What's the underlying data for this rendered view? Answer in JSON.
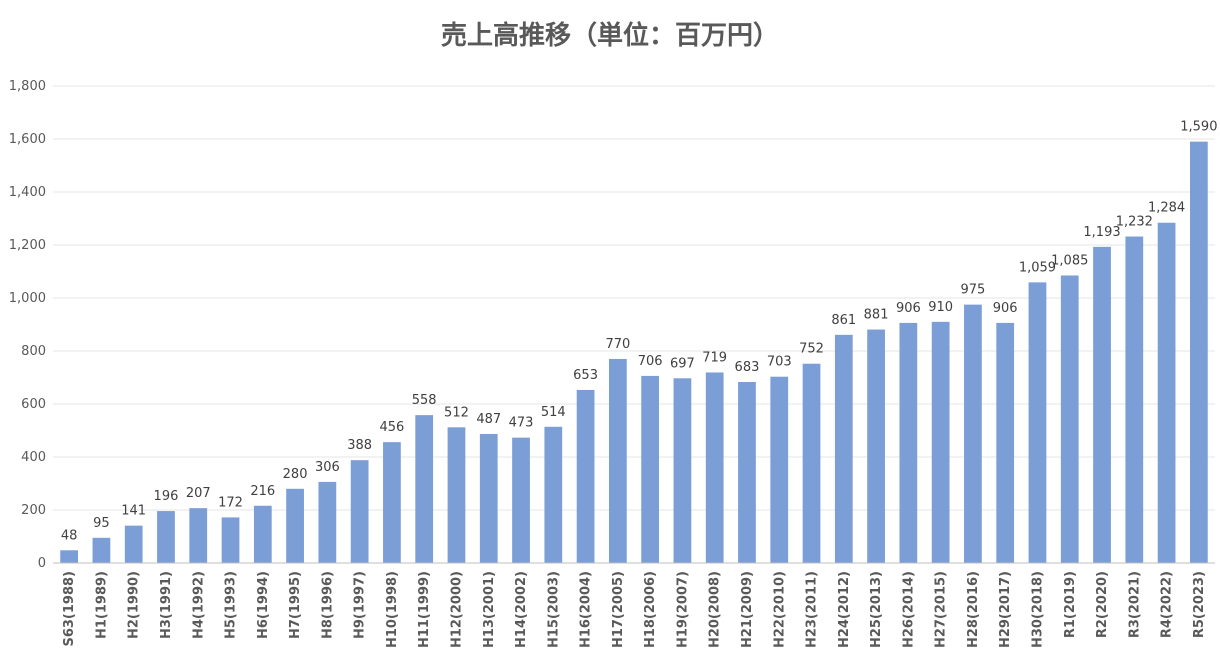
{
  "chart_data": {
    "type": "bar",
    "title": "売上高推移（単位：百万円）",
    "xlabel": "",
    "ylabel": "",
    "ylim": [
      0,
      1800
    ],
    "y_ticks": [
      "0",
      "200",
      "400",
      "600",
      "800",
      "1,000",
      "1,200",
      "1,400",
      "1,600",
      "1,800"
    ],
    "grid": true,
    "legend": "none",
    "bar_color": "#7b9ed6",
    "categories": [
      "S63(1988)",
      "H1(1989)",
      "H2(1990)",
      "H3(1991)",
      "H4(1992)",
      "H5(1993)",
      "H6(1994)",
      "H7(1995)",
      "H8(1996)",
      "H9(1997)",
      "H10(1998)",
      "H11(1999)",
      "H12(2000)",
      "H13(2001)",
      "H14(2002)",
      "H15(2003)",
      "H16(2004)",
      "H17(2005)",
      "H18(2006)",
      "H19(2007)",
      "H20(2008)",
      "H21(2009)",
      "H22(2010)",
      "H23(2011)",
      "H24(2012)",
      "H25(2013)",
      "H26(2014)",
      "H27(2015)",
      "H28(2016)",
      "H29(2017)",
      "H30(2018)",
      "R1(2019)",
      "R2(2020)",
      "R3(2021)",
      "R4(2022)",
      "R5(2023)"
    ],
    "values": [
      48,
      95,
      141,
      196,
      207,
      172,
      216,
      280,
      306,
      388,
      456,
      558,
      512,
      487,
      473,
      514,
      653,
      770,
      706,
      697,
      719,
      683,
      703,
      752,
      861,
      881,
      906,
      910,
      975,
      906,
      1059,
      1085,
      1193,
      1232,
      1284,
      1590
    ],
    "data_labels": [
      "48",
      "95",
      "141",
      "196",
      "207",
      "172",
      "216",
      "280",
      "306",
      "388",
      "456",
      "558",
      "512",
      "487",
      "473",
      "514",
      "653",
      "770",
      "706",
      "697",
      "719",
      "683",
      "703",
      "752",
      "861",
      "881",
      "906",
      "910",
      "975",
      "906",
      "1,059",
      "1,085",
      "1,193",
      "1,232",
      "1,284",
      "1,590"
    ]
  }
}
